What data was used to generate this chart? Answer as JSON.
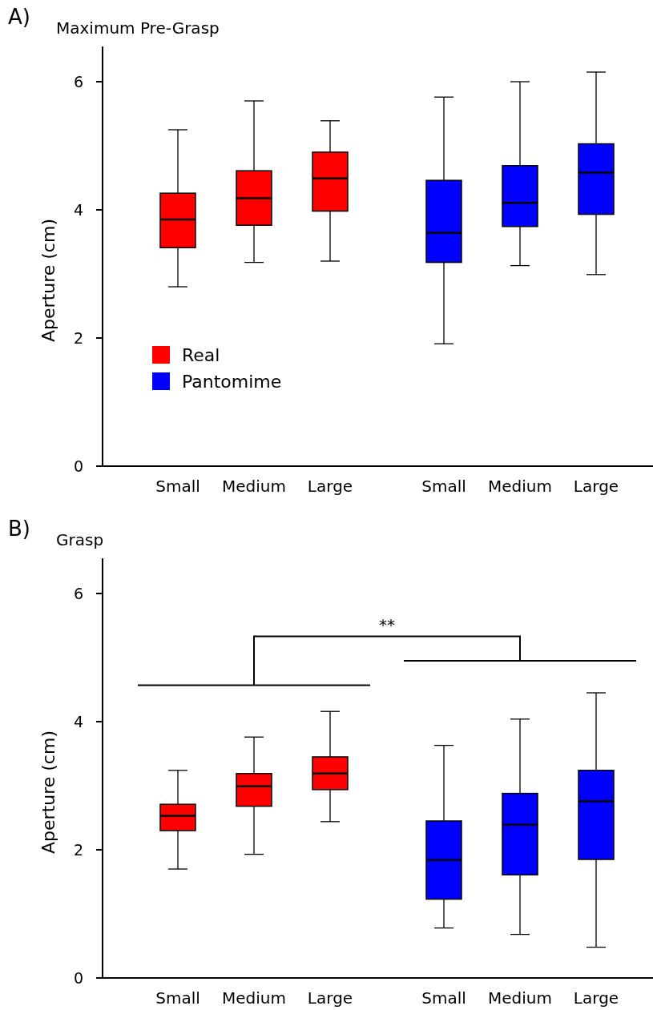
{
  "chart_data": [
    {
      "type": "box",
      "title": "Maximum Pre-Grasp",
      "ylabel": "Aperture (cm)",
      "annotations": [
        "A)"
      ],
      "categories": [
        "Small",
        "Medium",
        "Large",
        "Small",
        "Medium",
        "Large"
      ],
      "ylim": [
        0,
        6.55
      ],
      "yticks": [
        0,
        2,
        4,
        6
      ],
      "legend": "bottom left",
      "grid": false,
      "series": [
        {
          "name": "Real",
          "color": "#ff0000",
          "boxes": [
            {
              "low": 2.8,
              "q1": 3.41,
              "median": 3.85,
              "q3": 4.26,
              "high": 5.25
            },
            {
              "low": 3.18,
              "q1": 3.76,
              "median": 4.18,
              "q3": 4.61,
              "high": 5.7
            },
            {
              "low": 3.2,
              "q1": 3.98,
              "median": 4.49,
              "q3": 4.9,
              "high": 5.39
            },
            null,
            null,
            null
          ]
        },
        {
          "name": "Pantomime",
          "color": "#0000ff",
          "boxes": [
            null,
            null,
            null,
            {
              "low": 1.91,
              "q1": 3.18,
              "median": 3.64,
              "q3": 4.46,
              "high": 5.76
            },
            {
              "low": 3.13,
              "q1": 3.74,
              "median": 4.11,
              "q3": 4.69,
              "high": 6.0
            },
            {
              "low": 2.99,
              "q1": 3.93,
              "median": 4.58,
              "q3": 5.03,
              "high": 6.15
            }
          ]
        }
      ]
    },
    {
      "type": "box",
      "title": "Grasp",
      "ylabel": "Aperture (cm)",
      "annotations": [
        "B)",
        "**"
      ],
      "categories": [
        "Small",
        "Medium",
        "Large",
        "Small",
        "Medium",
        "Large"
      ],
      "ylim": [
        0,
        6.55
      ],
      "yticks": [
        0,
        2,
        4,
        6
      ],
      "grid": false,
      "series": [
        {
          "color": "#ff0000",
          "boxes": [
            {
              "low": 1.7,
              "q1": 2.3,
              "median": 2.53,
              "q3": 2.71,
              "high": 3.24
            },
            {
              "low": 1.93,
              "q1": 2.68,
              "median": 2.99,
              "q3": 3.19,
              "high": 3.76
            },
            {
              "low": 2.44,
              "q1": 2.94,
              "median": 3.19,
              "q3": 3.45,
              "high": 4.16
            },
            null,
            null,
            null
          ]
        },
        {
          "color": "#0000ff",
          "boxes": [
            null,
            null,
            null,
            {
              "low": 0.78,
              "q1": 1.23,
              "median": 1.84,
              "q3": 2.45,
              "high": 3.63
            },
            {
              "low": 0.68,
              "q1": 1.61,
              "median": 2.39,
              "q3": 2.88,
              "high": 4.04
            },
            {
              "low": 0.48,
              "q1": 1.85,
              "median": 2.76,
              "q3": 3.24,
              "high": 4.45
            }
          ]
        }
      ]
    }
  ]
}
